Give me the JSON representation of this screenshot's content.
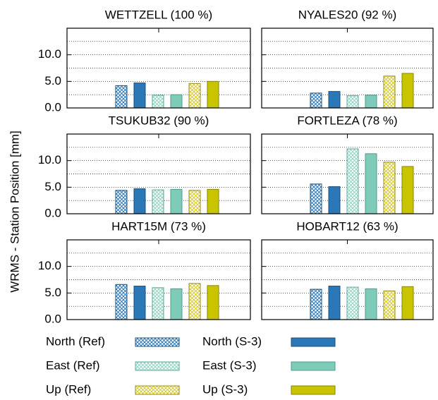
{
  "y_label": "WRMS - Station Position [mm]",
  "legend": [
    {
      "name": "North (Ref)",
      "color": "#2a78b8",
      "pattern": "hatch"
    },
    {
      "name": "North (S-3)",
      "color": "#2a78b8",
      "pattern": "solid"
    },
    {
      "name": "East (Ref)",
      "color": "#8fd3c2",
      "pattern": "hatch"
    },
    {
      "name": "East (S-3)",
      "color": "#7ecbb9",
      "pattern": "solid"
    },
    {
      "name": "Up (Ref)",
      "color": "#d8c830",
      "pattern": "hatch"
    },
    {
      "name": "Up (S-3)",
      "color": "#c8c400",
      "pattern": "solid"
    }
  ],
  "chart_data": [
    {
      "type": "bar",
      "title": "WETTZELL (100 %)",
      "values": [
        4.2,
        4.7,
        2.4,
        2.5,
        4.6,
        5.0
      ],
      "ylim": [
        0,
        15
      ],
      "yticks": [
        {
          "value": 0,
          "label": "0.0"
        },
        {
          "value": 5,
          "label": "5.0"
        },
        {
          "value": 10,
          "label": "10.0"
        }
      ],
      "minor_yticks": [
        2.5,
        7.5,
        12.5
      ],
      "grid": true
    },
    {
      "type": "bar",
      "title": "NYALES20 (92 %)",
      "values": [
        2.8,
        3.1,
        2.3,
        2.4,
        6.0,
        6.5
      ],
      "ylim": [
        0,
        15
      ],
      "yticks": [
        {
          "value": 0,
          "label": "0.0"
        },
        {
          "value": 5,
          "label": "5.0"
        },
        {
          "value": 10,
          "label": "10.0"
        }
      ],
      "minor_yticks": [
        2.5,
        7.5,
        12.5
      ],
      "grid": true
    },
    {
      "type": "bar",
      "title": "TSUKUB32 (90 %)",
      "values": [
        4.4,
        4.7,
        4.5,
        4.6,
        4.4,
        4.6
      ],
      "ylim": [
        0,
        15
      ],
      "yticks": [
        {
          "value": 0,
          "label": "0.0"
        },
        {
          "value": 5,
          "label": "5.0"
        },
        {
          "value": 10,
          "label": "10.0"
        }
      ],
      "minor_yticks": [
        2.5,
        7.5,
        12.5
      ],
      "grid": true
    },
    {
      "type": "bar",
      "title": "FORTLEZA (78 %)",
      "values": [
        5.6,
        5.1,
        12.2,
        11.3,
        9.7,
        8.9
      ],
      "ylim": [
        0,
        15
      ],
      "yticks": [
        {
          "value": 0,
          "label": "0.0"
        },
        {
          "value": 5,
          "label": "5.0"
        },
        {
          "value": 10,
          "label": "10.0"
        }
      ],
      "minor_yticks": [
        2.5,
        7.5,
        12.5
      ],
      "grid": true
    },
    {
      "type": "bar",
      "title": "HART15M (73 %)",
      "values": [
        6.6,
        6.3,
        6.0,
        5.8,
        6.8,
        6.4
      ],
      "ylim": [
        0,
        15
      ],
      "yticks": [
        {
          "value": 0,
          "label": "0.0"
        },
        {
          "value": 5,
          "label": "5.0"
        },
        {
          "value": 10,
          "label": "10.0"
        }
      ],
      "minor_yticks": [
        2.5,
        7.5,
        12.5
      ],
      "grid": true
    },
    {
      "type": "bar",
      "title": "HOBART12 (63 %)",
      "values": [
        5.7,
        6.3,
        6.1,
        5.8,
        5.4,
        6.2
      ],
      "ylim": [
        0,
        15
      ],
      "yticks": [
        {
          "value": 0,
          "label": "0.0"
        },
        {
          "value": 5,
          "label": "5.0"
        },
        {
          "value": 10,
          "label": "10.0"
        }
      ],
      "minor_yticks": [
        2.5,
        7.5,
        12.5
      ],
      "grid": true
    }
  ]
}
